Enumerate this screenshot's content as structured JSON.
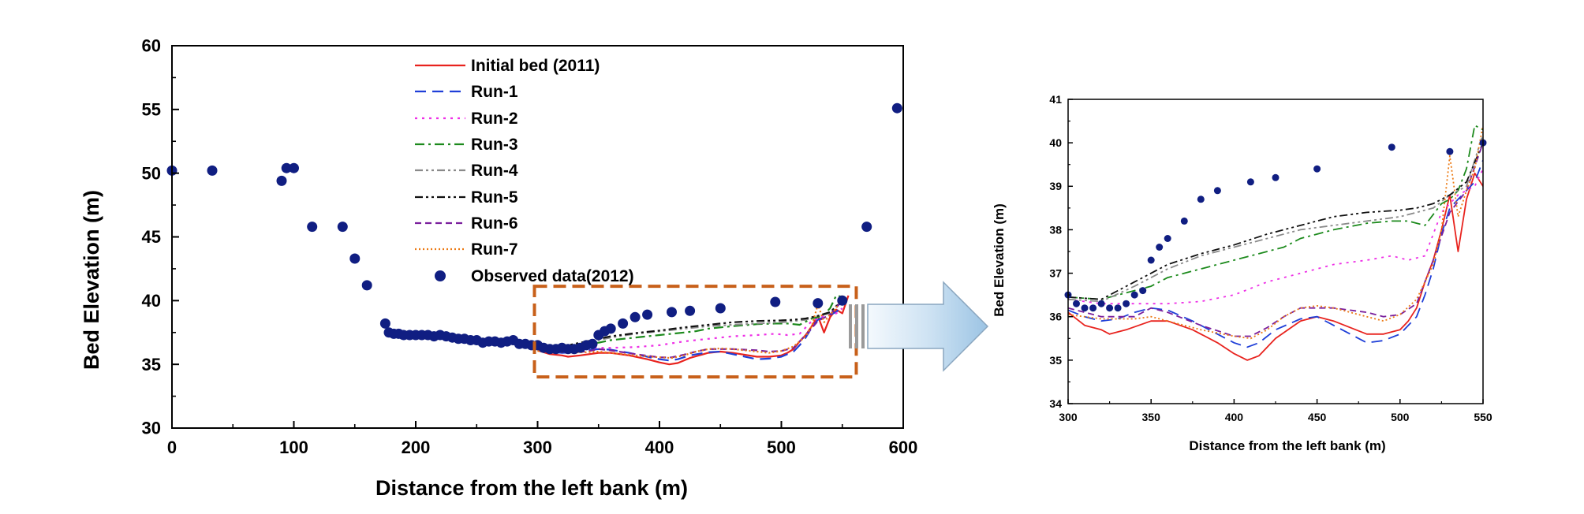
{
  "figure": {
    "main": {
      "xlabel": "Distance from the left bank (m)",
      "ylabel": "Bed Elevation (m)"
    },
    "inset": {
      "xlabel": "Distance from the left bank (m)",
      "ylabel": "Bed Elevation (m)"
    }
  },
  "legend_items": [
    {
      "key": "initial",
      "label": "Initial bed (2011)"
    },
    {
      "key": "run1",
      "label": "Run-1"
    },
    {
      "key": "run2",
      "label": "Run-2"
    },
    {
      "key": "run3",
      "label": "Run-3"
    },
    {
      "key": "run4",
      "label": "Run-4"
    },
    {
      "key": "run5",
      "label": "Run-5"
    },
    {
      "key": "run6",
      "label": "Run-6"
    },
    {
      "key": "run7",
      "label": "Run-7"
    },
    {
      "key": "observed",
      "label": "Observed data(2012)"
    }
  ],
  "chart_data": [
    {
      "type": "line",
      "title": "",
      "xlabel": "Distance from the left bank (m)",
      "ylabel": "Bed Elevation (m)",
      "xlim": [
        0,
        600
      ],
      "ylim": [
        30,
        60
      ],
      "xticks": [
        0,
        100,
        200,
        300,
        400,
        500,
        600
      ],
      "yticks": [
        30,
        35,
        40,
        45,
        50,
        55,
        60
      ],
      "legend_position": "top-center",
      "highlight_box": {
        "x": [
          300,
          555
        ],
        "y": [
          34.2,
          41
        ]
      },
      "series": [
        {
          "key": "initial",
          "name": "Initial bed (2011)",
          "color": "#e8231e",
          "dash": "solid",
          "x": [
            300,
            310,
            320,
            325,
            335,
            350,
            360,
            375,
            390,
            400,
            408,
            415,
            425,
            440,
            450,
            460,
            480,
            490,
            500,
            505,
            510,
            515,
            520,
            525,
            530,
            535,
            540,
            545,
            550,
            555
          ],
          "y": [
            36.1,
            35.8,
            35.7,
            35.6,
            35.7,
            35.9,
            35.9,
            35.7,
            35.4,
            35.15,
            35.0,
            35.1,
            35.5,
            35.9,
            36.0,
            35.9,
            35.6,
            35.6,
            35.7,
            35.9,
            36.2,
            36.8,
            37.3,
            38.0,
            38.8,
            37.5,
            38.7,
            39.3,
            39.0,
            40.4
          ]
        },
        {
          "key": "run1",
          "name": "Run-1",
          "color": "#1f3fd8",
          "dash": "long",
          "x": [
            300,
            310,
            320,
            330,
            340,
            350,
            360,
            375,
            390,
            400,
            408,
            415,
            425,
            440,
            450,
            460,
            475,
            480,
            490,
            500,
            505,
            510,
            515,
            520,
            525,
            530,
            535,
            540,
            545,
            550
          ],
          "y": [
            36.15,
            36.0,
            35.9,
            35.95,
            36.1,
            36.2,
            36.15,
            35.9,
            35.6,
            35.4,
            35.3,
            35.4,
            35.7,
            35.95,
            36.0,
            35.8,
            35.5,
            35.4,
            35.45,
            35.6,
            35.8,
            36.0,
            36.5,
            37.1,
            37.9,
            38.5,
            38.7,
            38.9,
            39.1,
            39.6
          ]
        },
        {
          "key": "run2",
          "name": "Run-2",
          "color": "#ee2fe6",
          "dash": "dot",
          "x": [
            300,
            320,
            340,
            360,
            380,
            400,
            420,
            440,
            460,
            480,
            495,
            505,
            515,
            525,
            535,
            545,
            550
          ],
          "y": [
            36.4,
            36.3,
            36.3,
            36.3,
            36.35,
            36.5,
            36.8,
            37.0,
            37.2,
            37.3,
            37.4,
            37.3,
            37.4,
            38.4,
            38.8,
            39.0,
            39.4
          ]
        },
        {
          "key": "run3",
          "name": "Run-3",
          "color": "#1c8a1c",
          "dash": "dashdot",
          "x": [
            300,
            320,
            340,
            350,
            360,
            380,
            400,
            420,
            430,
            440,
            460,
            480,
            495,
            505,
            515,
            525,
            530,
            535,
            540,
            545,
            550
          ],
          "y": [
            36.45,
            36.4,
            36.6,
            36.7,
            36.9,
            37.1,
            37.3,
            37.5,
            37.6,
            37.8,
            38.0,
            38.15,
            38.2,
            38.2,
            38.1,
            38.6,
            38.7,
            38.9,
            39.4,
            40.4,
            40.3
          ]
        },
        {
          "key": "run4",
          "name": "Run-4",
          "color": "#8a8a8a",
          "dash": "dashdotdot",
          "x": [
            300,
            320,
            340,
            360,
            380,
            400,
            420,
            440,
            460,
            480,
            500,
            510,
            520,
            530,
            540,
            550
          ],
          "y": [
            36.4,
            36.35,
            36.7,
            37.1,
            37.4,
            37.6,
            37.8,
            38.0,
            38.1,
            38.2,
            38.3,
            38.4,
            38.5,
            38.8,
            39.0,
            40.2
          ]
        },
        {
          "key": "run5",
          "name": "Run-5",
          "color": "#111111",
          "dash": "dashdotdot",
          "x": [
            300,
            320,
            340,
            350,
            360,
            380,
            400,
            420,
            440,
            460,
            480,
            500,
            510,
            520,
            530,
            540,
            550
          ],
          "y": [
            36.45,
            36.4,
            36.8,
            37.0,
            37.2,
            37.45,
            37.65,
            37.9,
            38.1,
            38.3,
            38.4,
            38.45,
            38.5,
            38.6,
            38.8,
            39.1,
            40.0
          ]
        },
        {
          "key": "run6",
          "name": "Run-6",
          "color": "#7a1f9c",
          "dash": "dash",
          "x": [
            300,
            320,
            340,
            350,
            360,
            380,
            400,
            410,
            420,
            430,
            440,
            460,
            480,
            490,
            500,
            510,
            520,
            530,
            540,
            550
          ],
          "y": [
            36.2,
            36.0,
            36.0,
            36.2,
            36.1,
            35.8,
            35.55,
            35.55,
            35.75,
            36.0,
            36.2,
            36.2,
            36.1,
            36.0,
            36.05,
            36.3,
            37.3,
            38.4,
            38.9,
            40.0
          ]
        },
        {
          "key": "run7",
          "name": "Run-7",
          "color": "#ec7a14",
          "dash": "fine",
          "x": [
            300,
            320,
            340,
            350,
            360,
            380,
            400,
            410,
            420,
            430,
            440,
            450,
            460,
            480,
            490,
            500,
            510,
            520,
            525,
            530,
            535,
            540,
            545,
            550
          ],
          "y": [
            36.05,
            35.95,
            35.95,
            36.0,
            35.9,
            35.7,
            35.55,
            35.5,
            35.7,
            36.0,
            36.2,
            36.25,
            36.2,
            36.0,
            35.9,
            36.05,
            36.4,
            37.2,
            38.0,
            39.7,
            38.3,
            38.9,
            39.4,
            40.4
          ]
        }
      ],
      "observed": {
        "key": "observed",
        "name": "Observed data(2012)",
        "color": "#101e82",
        "x": [
          0,
          33,
          90,
          94,
          100,
          115,
          140,
          150,
          160,
          175,
          178,
          182,
          186,
          190,
          195,
          200,
          205,
          210,
          215,
          220,
          225,
          230,
          235,
          240,
          245,
          250,
          255,
          260,
          265,
          270,
          275,
          280,
          285,
          290,
          295,
          300,
          305,
          310,
          315,
          320,
          325,
          330,
          335,
          340,
          345,
          350,
          355,
          360,
          370,
          380,
          390,
          410,
          425,
          450,
          495,
          530,
          550,
          570,
          595
        ],
        "y": [
          50.2,
          50.2,
          49.4,
          50.4,
          50.4,
          45.8,
          45.8,
          43.3,
          41.2,
          38.2,
          37.5,
          37.4,
          37.4,
          37.3,
          37.3,
          37.3,
          37.3,
          37.3,
          37.2,
          37.3,
          37.2,
          37.1,
          37.0,
          37.0,
          36.9,
          36.9,
          36.7,
          36.8,
          36.8,
          36.7,
          36.8,
          36.9,
          36.6,
          36.6,
          36.5,
          36.5,
          36.3,
          36.2,
          36.2,
          36.3,
          36.2,
          36.2,
          36.3,
          36.5,
          36.6,
          37.3,
          37.6,
          37.8,
          38.2,
          38.7,
          38.9,
          39.1,
          39.2,
          39.4,
          39.9,
          39.8,
          40.0,
          45.8,
          55.1
        ]
      }
    },
    {
      "type": "line",
      "title": "",
      "xlabel": "Distance from the left bank (m)",
      "ylabel": "Bed Elevation (m)",
      "xlim": [
        300,
        550
      ],
      "ylim": [
        34,
        41
      ],
      "xticks": [
        300,
        350,
        400,
        450,
        500,
        550
      ],
      "yticks": [
        34,
        35,
        36,
        37,
        38,
        39,
        40,
        41
      ],
      "note": "zoomed view of the highlighted region, same series as main chart"
    }
  ]
}
